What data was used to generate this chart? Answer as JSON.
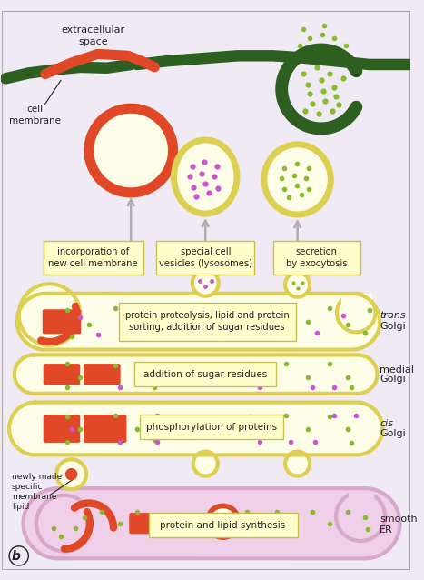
{
  "bg_color": "#ece8f0",
  "fig_width": 4.67,
  "fig_height": 6.38,
  "colors": {
    "yellow_fill": "#fdfde8",
    "yellow_border": "#ddd050",
    "red_orange": "#e04828",
    "green_dark": "#2d6020",
    "green_dot": "#88bb30",
    "pink_fill": "#f0d0e8",
    "pink_border": "#d8a8cc",
    "purple_dot": "#cc55cc",
    "label_box_fill": "#ffffcc",
    "label_box_border": "#c8c050",
    "text_dark": "#222222",
    "white": "#ffffff",
    "arrow_gray": "#b0b0b0",
    "bg_inner": "#f0eaf4"
  },
  "labels": {
    "extracellular": "extracellular\nspace",
    "cell_membrane": "cell\nmembrane",
    "incorporation": "incorporation of\nnew cell membrane",
    "special_cell": "special cell\nvesicles (lysosomes)",
    "secretion": "secretion\nby exocytosis",
    "trans_label": "protein proteolysis, lipid and protein\nsorting, addition of sugar residues",
    "medial_label": "addition of sugar residues",
    "cis_label": "phosphorylation of proteins",
    "newly_made": "newly made\nspecific\nmembrane\nlipid",
    "smooth_er_label": "protein and lipid synthesis",
    "b_label": "b"
  }
}
